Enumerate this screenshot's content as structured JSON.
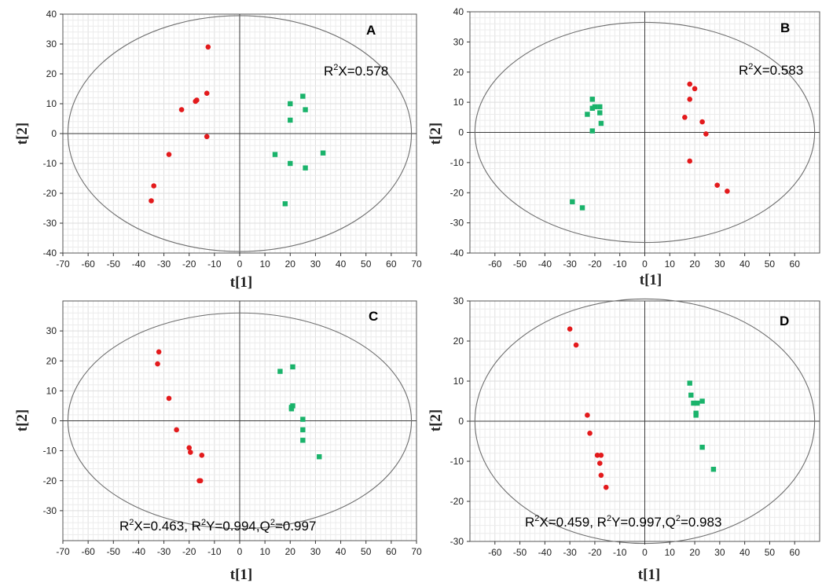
{
  "colors": {
    "group1": "#e31a1c",
    "group2": "#1ab36b"
  },
  "chart_data": [
    {
      "type": "scatter",
      "panel": "A",
      "xlabel": "t[1]",
      "ylabel": "t[2]",
      "xlim": [
        -70,
        70
      ],
      "ylim": [
        -40,
        40
      ],
      "xticks": [
        -70,
        -60,
        -50,
        -40,
        -30,
        -20,
        -10,
        0,
        10,
        20,
        30,
        40,
        50,
        60,
        70
      ],
      "yticks": [
        -40,
        -30,
        -20,
        -10,
        0,
        10,
        20,
        30,
        40
      ],
      "annotation": [
        {
          "t": "R"
        },
        {
          "t": "2",
          "sup": true
        },
        {
          "t": "X=0.578"
        }
      ],
      "ellipse": {
        "rx": 68,
        "ry": 39.5
      },
      "series": [
        {
          "marker": "circle",
          "color": "#e31a1c",
          "points": [
            [
              -12.5,
              29
            ],
            [
              -13,
              13.5
            ],
            [
              -17,
              11.2
            ],
            [
              -17.5,
              10.8
            ],
            [
              -23,
              8
            ],
            [
              -13,
              -1
            ],
            [
              -28,
              -7
            ],
            [
              -34,
              -17.5
            ],
            [
              -35,
              -22.5
            ]
          ]
        },
        {
          "marker": "square",
          "color": "#1ab36b",
          "points": [
            [
              25,
              12.5
            ],
            [
              20,
              10
            ],
            [
              26,
              8
            ],
            [
              20,
              4.5
            ],
            [
              14,
              -7
            ],
            [
              33,
              -6.5
            ],
            [
              20,
              -10
            ],
            [
              26,
              -11.5
            ],
            [
              18,
              -23.5
            ]
          ]
        }
      ]
    },
    {
      "type": "scatter",
      "panel": "B",
      "xlabel": "t[1]",
      "ylabel": "t[2]",
      "xlim": [
        -70,
        70
      ],
      "ylim": [
        -40,
        40
      ],
      "xticks": [
        -60,
        -50,
        -40,
        -30,
        -20,
        -10,
        0,
        10,
        20,
        30,
        40,
        50,
        60
      ],
      "yticks": [
        -40,
        -30,
        -20,
        -10,
        0,
        10,
        20,
        30,
        40
      ],
      "annotation": [
        {
          "t": "R"
        },
        {
          "t": "2",
          "sup": true
        },
        {
          "t": "X=0.583"
        }
      ],
      "ellipse": {
        "rx": 68,
        "ry": 36.5
      },
      "series": [
        {
          "marker": "circle",
          "color": "#e31a1c",
          "points": [
            [
              18,
              16
            ],
            [
              20,
              14.5
            ],
            [
              18,
              11
            ],
            [
              16,
              5
            ],
            [
              23,
              3.5
            ],
            [
              24.5,
              -0.5
            ],
            [
              18,
              -9.5
            ],
            [
              29,
              -17.5
            ],
            [
              33,
              -19.5
            ]
          ]
        },
        {
          "marker": "square",
          "color": "#1ab36b",
          "points": [
            [
              -21,
              11
            ],
            [
              -20,
              8.5
            ],
            [
              -18,
              8.5
            ],
            [
              -21,
              8
            ],
            [
              -18,
              6.5
            ],
            [
              -23,
              6
            ],
            [
              -17.5,
              3
            ],
            [
              -21,
              0.5
            ],
            [
              -29,
              -23
            ],
            [
              -25,
              -25
            ]
          ]
        }
      ]
    },
    {
      "type": "scatter",
      "panel": "C",
      "xlabel": "t[1]",
      "ylabel": "t[2]",
      "xlim": [
        -70,
        70
      ],
      "ylim": [
        -40,
        40
      ],
      "xticks": [
        -70,
        -60,
        -50,
        -40,
        -30,
        -20,
        -10,
        0,
        10,
        20,
        30,
        40,
        50,
        60,
        70
      ],
      "yticks": [
        -30,
        -20,
        -10,
        0,
        10,
        20,
        30
      ],
      "annotation": [
        {
          "t": "R"
        },
        {
          "t": "2",
          "sup": true
        },
        {
          "t": "X=0.463, R"
        },
        {
          "t": "2",
          "sup": true
        },
        {
          "t": "Y=0.994,Q"
        },
        {
          "t": "2",
          "sup": true
        },
        {
          "t": "=0.997"
        }
      ],
      "ellipse": {
        "rx": 68,
        "ry": 36
      },
      "series": [
        {
          "marker": "circle",
          "color": "#e31a1c",
          "points": [
            [
              -32,
              23
            ],
            [
              -32.5,
              19
            ],
            [
              -28,
              7.5
            ],
            [
              -25,
              -3
            ],
            [
              -20,
              -9
            ],
            [
              -19.5,
              -10.5
            ],
            [
              -15,
              -11.5
            ],
            [
              -16,
              -20
            ],
            [
              -15.5,
              -20
            ]
          ]
        },
        {
          "marker": "square",
          "color": "#1ab36b",
          "points": [
            [
              21,
              18
            ],
            [
              16,
              16.5
            ],
            [
              21,
              5
            ],
            [
              20.5,
              4.5
            ],
            [
              20.5,
              4
            ],
            [
              25,
              0.5
            ],
            [
              25,
              -3
            ],
            [
              25,
              -6.5
            ],
            [
              31.5,
              -12
            ]
          ]
        }
      ]
    },
    {
      "type": "scatter",
      "panel": "D",
      "xlabel": "t[1]",
      "ylabel": "t[2]",
      "xlim": [
        -70,
        70
      ],
      "ylim": [
        -30,
        30
      ],
      "xticks": [
        -60,
        -50,
        -40,
        -30,
        -20,
        -10,
        0,
        10,
        20,
        30,
        40,
        50,
        60
      ],
      "yticks": [
        -30,
        -20,
        -10,
        0,
        10,
        20,
        30
      ],
      "annotation": [
        {
          "t": "R"
        },
        {
          "t": "2",
          "sup": true
        },
        {
          "t": "X=0.459, R"
        },
        {
          "t": "2",
          "sup": true
        },
        {
          "t": "Y=0.997,Q"
        },
        {
          "t": "2",
          "sup": true
        },
        {
          "t": "=0.983"
        }
      ],
      "ellipse": {
        "rx": 68,
        "ry": 30.5
      },
      "series": [
        {
          "marker": "circle",
          "color": "#e31a1c",
          "points": [
            [
              -30,
              23
            ],
            [
              -27.5,
              19
            ],
            [
              -23,
              1.5
            ],
            [
              -22,
              -3
            ],
            [
              -19,
              -8.5
            ],
            [
              -17.5,
              -8.5
            ],
            [
              -18,
              -10.5
            ],
            [
              -17.5,
              -13.5
            ],
            [
              -15.5,
              -16.5
            ]
          ]
        },
        {
          "marker": "square",
          "color": "#1ab36b",
          "points": [
            [
              18,
              9.5
            ],
            [
              18.5,
              6.5
            ],
            [
              19.5,
              4.5
            ],
            [
              21,
              4.5
            ],
            [
              23,
              5
            ],
            [
              20.5,
              2
            ],
            [
              20.5,
              1.5
            ],
            [
              23,
              -6.5
            ],
            [
              27.5,
              -12
            ]
          ]
        }
      ]
    }
  ]
}
